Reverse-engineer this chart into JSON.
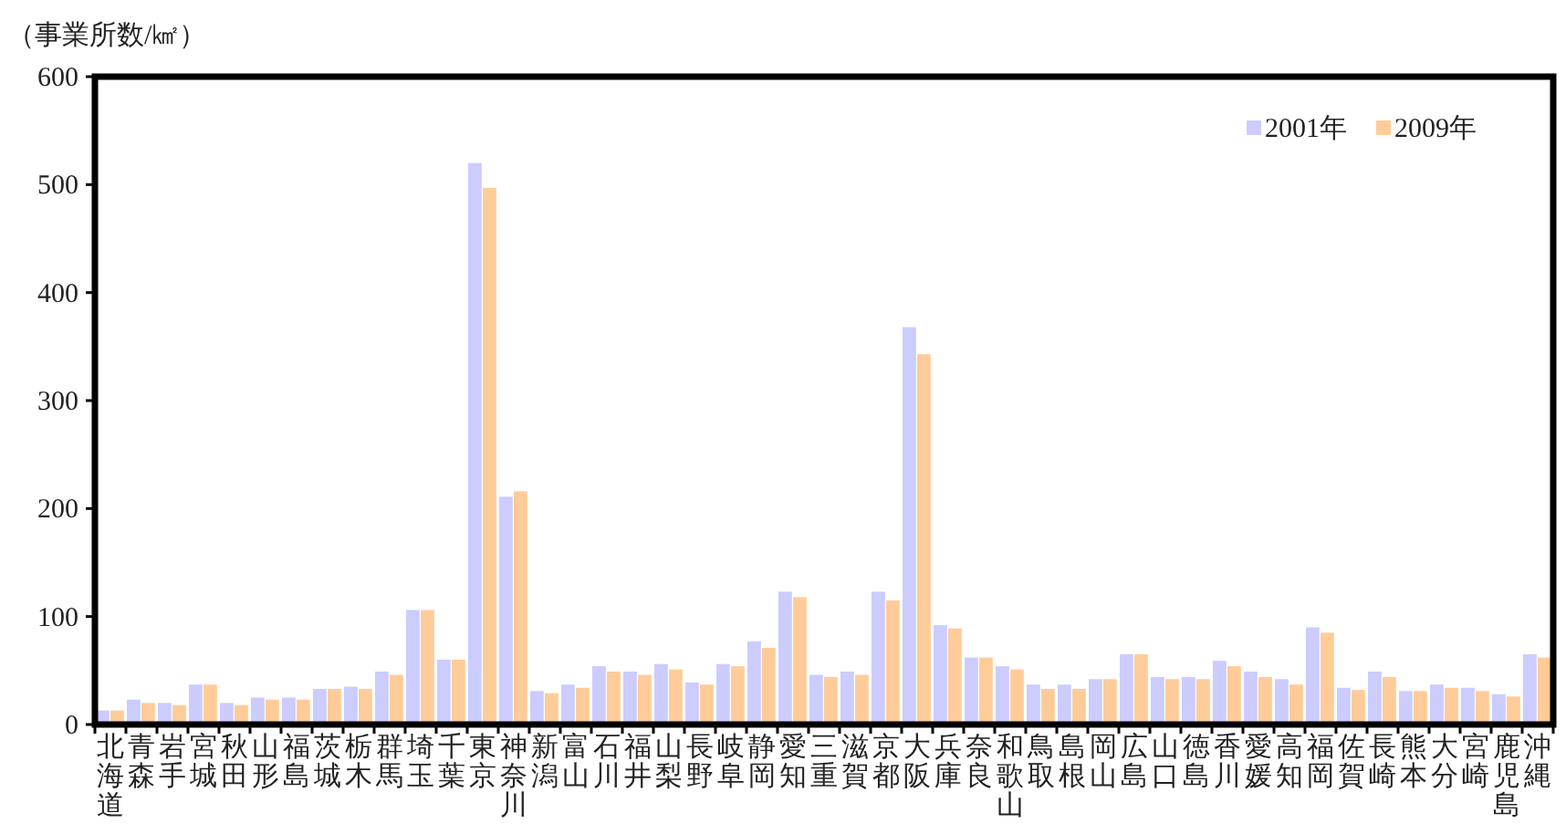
{
  "chart_data": {
    "type": "bar",
    "ylabel": "（事業所数/㎢）",
    "categories": [
      "北海道",
      "青森",
      "岩手",
      "宮城",
      "秋田",
      "山形",
      "福島",
      "茨城",
      "栃木",
      "群馬",
      "埼玉",
      "千葉",
      "東京",
      "神奈川",
      "新潟",
      "富山",
      "石川",
      "福井",
      "山梨",
      "長野",
      "岐阜",
      "静岡",
      "愛知",
      "三重",
      "滋賀",
      "京都",
      "大阪",
      "兵庫",
      "奈良",
      "和歌山",
      "鳥取",
      "島根",
      "岡山",
      "広島",
      "山口",
      "徳島",
      "香川",
      "愛媛",
      "高知",
      "福岡",
      "佐賀",
      "長崎",
      "熊本",
      "大分",
      "宮崎",
      "鹿児島",
      "沖縄"
    ],
    "series": [
      {
        "name": "2001年",
        "color": "#ccccff",
        "values": [
          13,
          23,
          20,
          37,
          20,
          25,
          25,
          33,
          35,
          49,
          106,
          60,
          520,
          211,
          31,
          37,
          54,
          49,
          56,
          39,
          56,
          77,
          123,
          46,
          49,
          123,
          368,
          92,
          62,
          54,
          37,
          37,
          42,
          65,
          44,
          44,
          59,
          49,
          42,
          90,
          34,
          49,
          31,
          37,
          34,
          28,
          65
        ]
      },
      {
        "name": "2009年",
        "color": "#ffcc99",
        "values": [
          13,
          20,
          18,
          37,
          18,
          23,
          23,
          33,
          33,
          46,
          106,
          60,
          497,
          216,
          29,
          34,
          49,
          46,
          51,
          37,
          54,
          71,
          118,
          44,
          46,
          115,
          343,
          89,
          62,
          51,
          33,
          33,
          42,
          65,
          42,
          42,
          54,
          44,
          37,
          85,
          32,
          44,
          31,
          34,
          31,
          26,
          62
        ]
      }
    ],
    "ylim": [
      0,
      600
    ],
    "yticks": [
      0,
      100,
      200,
      300,
      400,
      500,
      600
    ],
    "grid": false,
    "legend": "top right"
  }
}
